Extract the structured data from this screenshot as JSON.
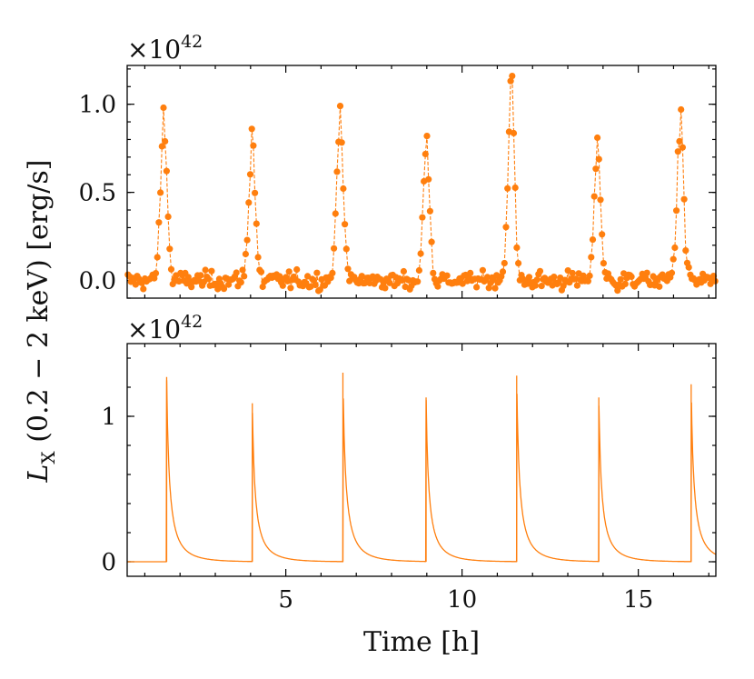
{
  "figure": {
    "x_axis_label": "Time [h]",
    "y_axis_label_parts": {
      "L": "L",
      "sub": "X",
      "rest": " (0.2 − 2 keV) [erg/s]"
    },
    "multiplier": {
      "base": "×10",
      "exponent": "42"
    },
    "accent_color": "#ff7f0e"
  },
  "chart_data": [
    {
      "type": "scatter",
      "panel": "top",
      "style": "markers connected by dashed line",
      "xlim": [
        0.5,
        17.2
      ],
      "ylim": [
        -0.1,
        1.22
      ],
      "x_ticks": [
        5,
        10,
        15
      ],
      "y_ticks": [
        0.0,
        0.5,
        1.0
      ],
      "y_tick_labels": [
        "0.0",
        "0.5",
        "1.0"
      ],
      "y_multiplier": "×10^42",
      "flare_peaks": [
        {
          "t": 1.55,
          "peak": 0.98
        },
        {
          "t": 4.05,
          "peak": 0.86
        },
        {
          "t": 6.55,
          "peak": 0.99
        },
        {
          "t": 9.0,
          "peak": 0.82
        },
        {
          "t": 11.4,
          "peak": 1.16
        },
        {
          "t": 13.85,
          "peak": 0.81
        },
        {
          "t": 16.2,
          "peak": 0.97
        }
      ],
      "quiescent_level": 0.0,
      "noise_amplitude": 0.05,
      "n_points": 380
    },
    {
      "type": "line",
      "panel": "bottom",
      "xlim": [
        0.5,
        17.2
      ],
      "ylim": [
        -0.1,
        1.5
      ],
      "x_ticks": [
        5,
        10,
        15
      ],
      "x_tick_labels": [
        "5",
        "10",
        "15"
      ],
      "y_ticks": [
        0,
        1
      ],
      "y_tick_labels": [
        "0",
        "1"
      ],
      "y_multiplier": "×10^42",
      "flares": [
        {
          "t": 1.62,
          "peak": 1.27
        },
        {
          "t": 4.05,
          "peak": 1.09
        },
        {
          "t": 6.62,
          "peak": 1.3
        },
        {
          "t": 8.98,
          "peak": 1.13
        },
        {
          "t": 11.55,
          "peak": 1.28
        },
        {
          "t": 13.88,
          "peak": 1.13
        },
        {
          "t": 16.5,
          "peak": 1.22
        }
      ],
      "decay_timescale_h": 0.35,
      "baseline": 0.0
    }
  ]
}
